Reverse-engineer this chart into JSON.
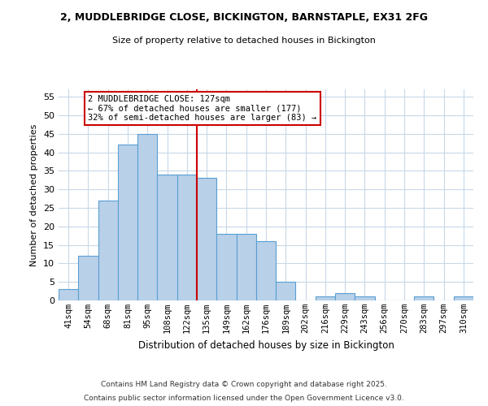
{
  "title": "2, MUDDLEBRIDGE CLOSE, BICKINGTON, BARNSTAPLE, EX31 2FG",
  "subtitle": "Size of property relative to detached houses in Bickington",
  "xlabel": "Distribution of detached houses by size in Bickington",
  "ylabel": "Number of detached properties",
  "bar_labels": [
    "41sqm",
    "54sqm",
    "68sqm",
    "81sqm",
    "95sqm",
    "108sqm",
    "122sqm",
    "135sqm",
    "149sqm",
    "162sqm",
    "176sqm",
    "189sqm",
    "202sqm",
    "216sqm",
    "229sqm",
    "243sqm",
    "256sqm",
    "270sqm",
    "283sqm",
    "297sqm",
    "310sqm"
  ],
  "bar_values": [
    3,
    12,
    27,
    42,
    45,
    34,
    34,
    33,
    18,
    18,
    16,
    5,
    0,
    1,
    2,
    1,
    0,
    0,
    1,
    0,
    1
  ],
  "bar_color": "#b8d0e8",
  "bar_edge_color": "#5a9fd4",
  "vline_x": 6.5,
  "vline_color": "#cc0000",
  "annotation_title": "2 MUDDLEBRIDGE CLOSE: 127sqm",
  "annotation_line1": "← 67% of detached houses are smaller (177)",
  "annotation_line2": "32% of semi-detached houses are larger (83) →",
  "annotation_box_color": "#cc0000",
  "ylim": [
    0,
    57
  ],
  "yticks": [
    0,
    5,
    10,
    15,
    20,
    25,
    30,
    35,
    40,
    45,
    50,
    55
  ],
  "footnote1": "Contains HM Land Registry data © Crown copyright and database right 2025.",
  "footnote2": "Contains public sector information licensed under the Open Government Licence v3.0.",
  "background_color": "#ffffff",
  "grid_color": "#c8d8e8"
}
